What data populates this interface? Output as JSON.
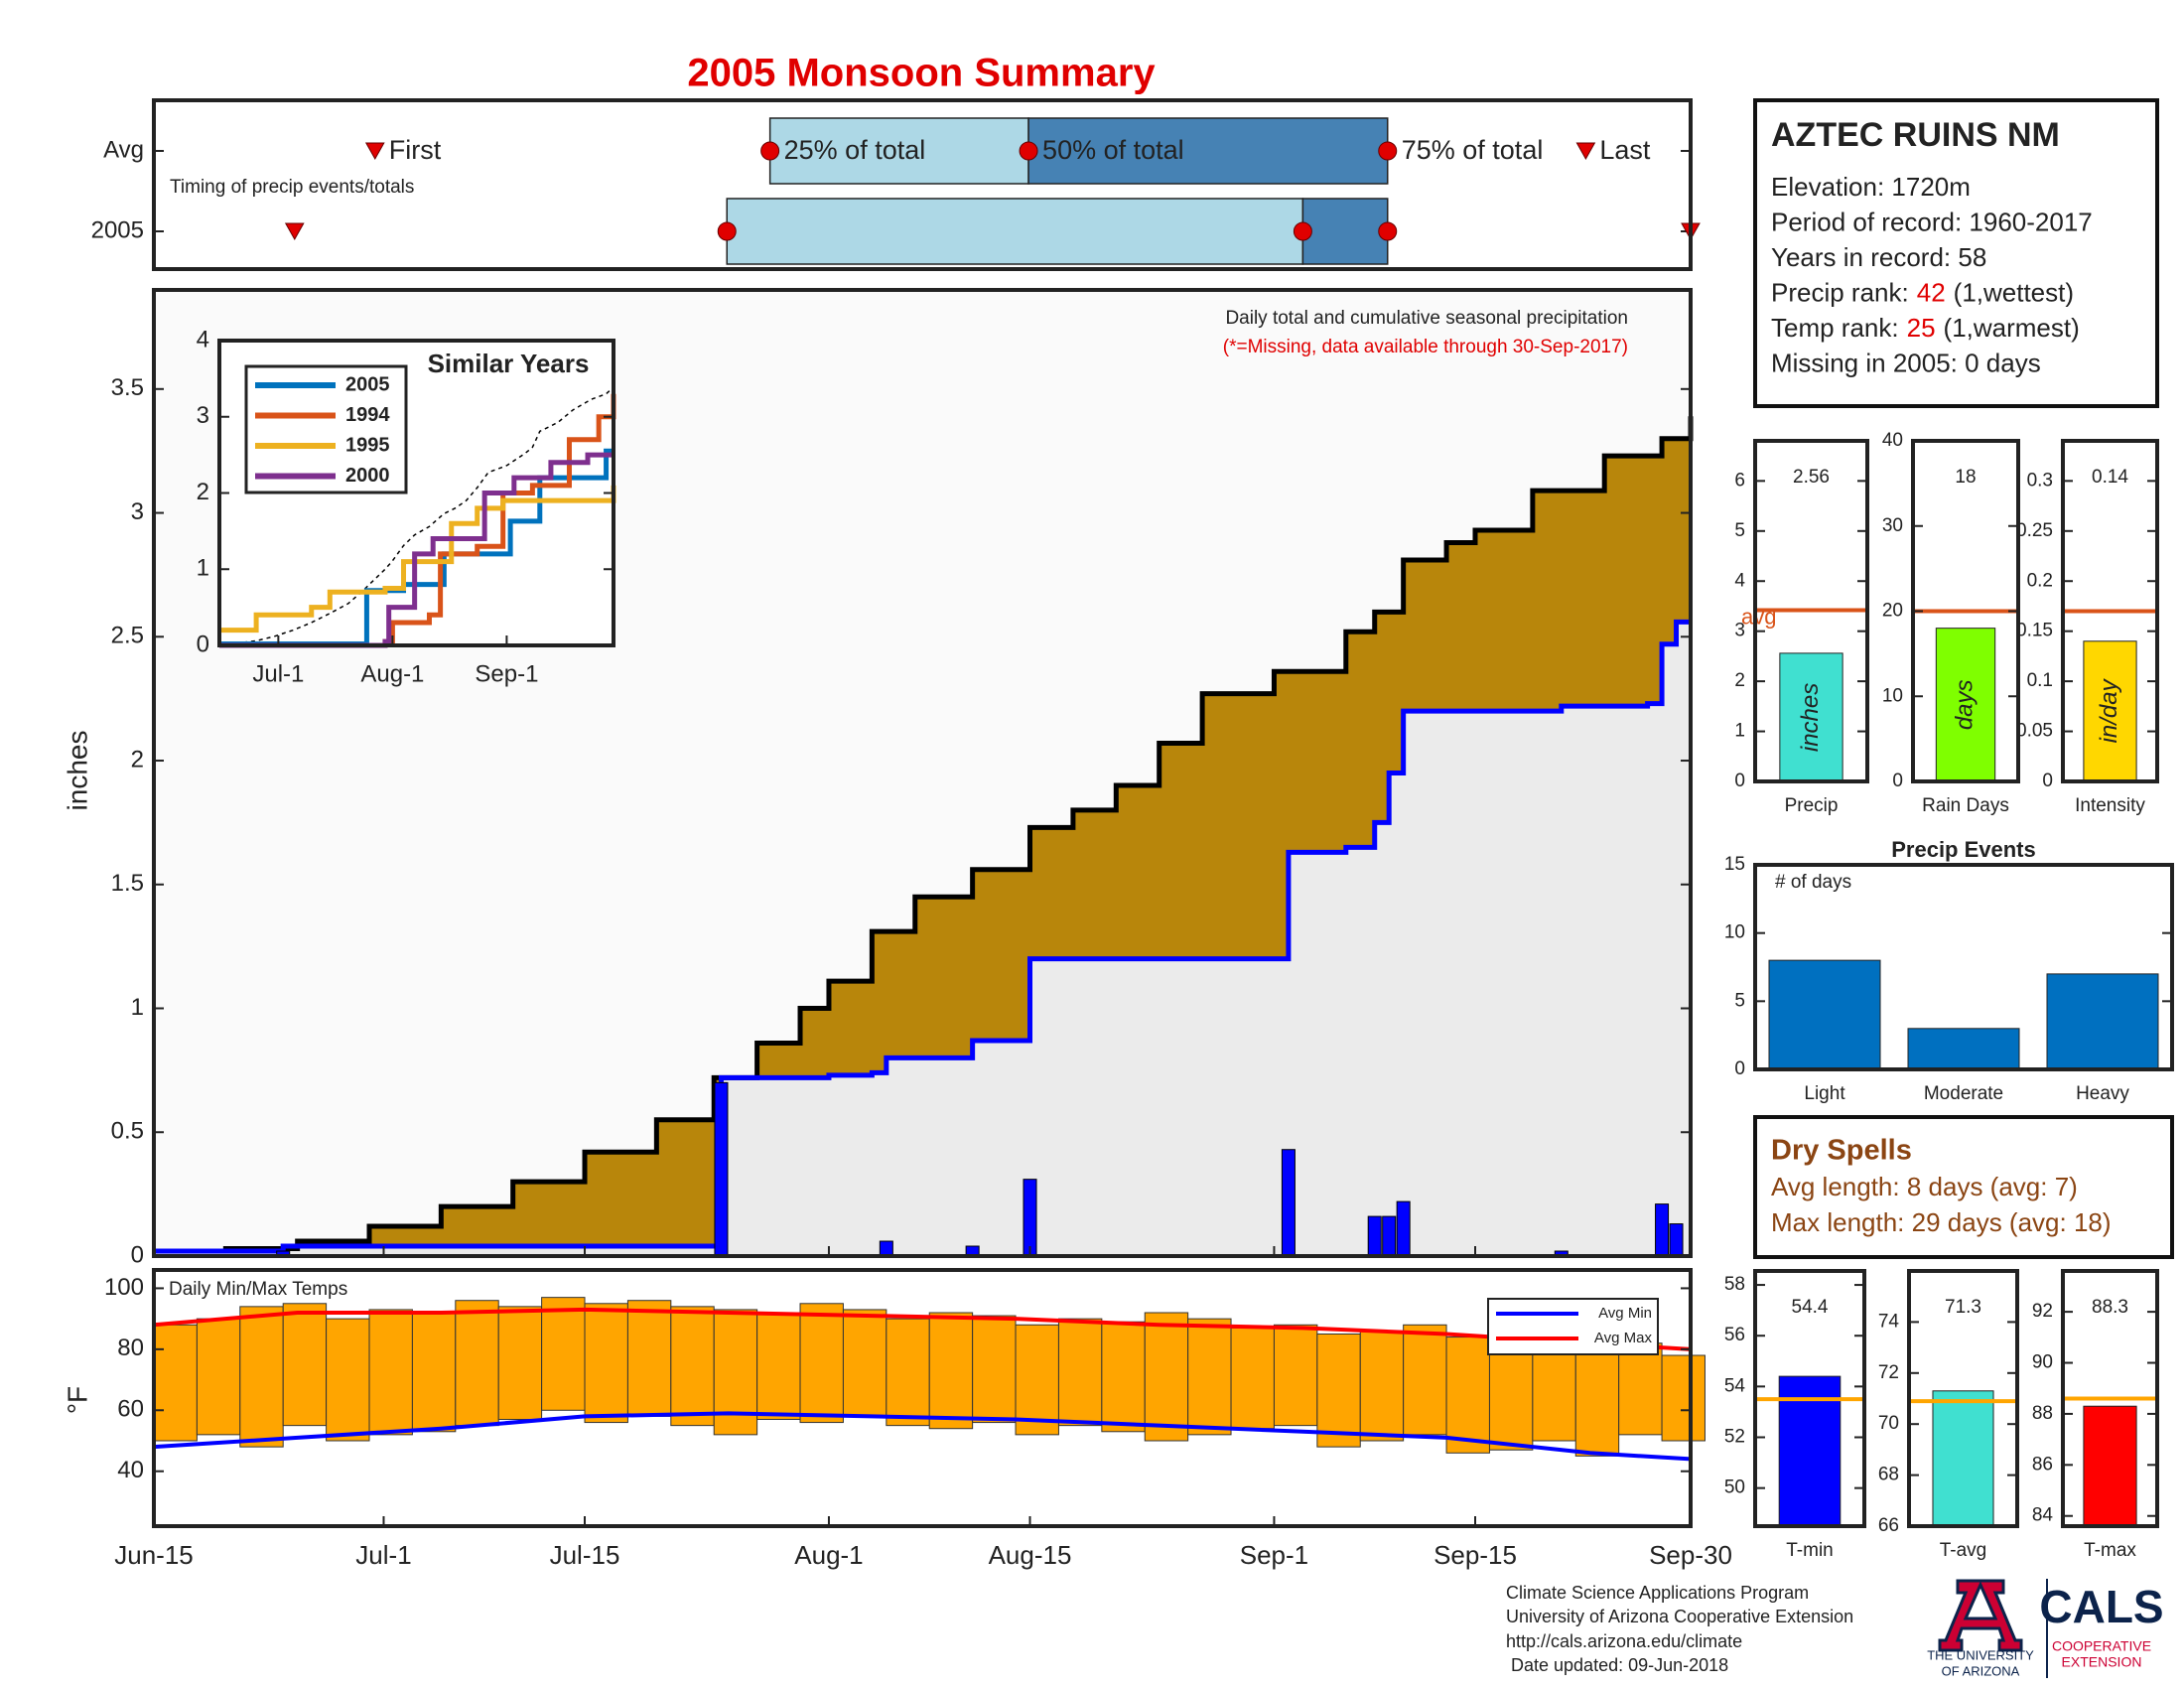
{
  "station": {
    "name": "AZTEC RUINS NM",
    "lines": [
      {
        "text": "Elevation: 1720m"
      },
      {
        "text": "Period of record: 1960-2017"
      },
      {
        "text": "Years in record: 58"
      },
      {
        "text": "Precip rank:",
        "value": 42,
        "note": "(1,wettest)"
      },
      {
        "text": "Temp rank:",
        "value": 25,
        "note": "(1,warmest)"
      },
      {
        "text": "Missing in 2005: 0 days"
      }
    ]
  },
  "dry_spells": {
    "title": "Dry Spells",
    "lines": [
      "Avg length: 8 days (avg: 7)",
      "Max length: 29 days (avg: 18)"
    ]
  },
  "footer": [
    "Climate Science Applications Program",
    "University of Arizona Cooperative Extension",
    "http://cals.arizona.edu/climate",
    "Date updated: 09-Jun-2018"
  ],
  "logos": [
    "THE UNIVERSITY",
    "OF ARIZONA",
    "CALS",
    "COOPERATIVE",
    "EXTENSION"
  ],
  "chart_data": [
    {
      "type": "timeline",
      "title": "2005 Monsoon Summary",
      "subtitle": "Timing of precip events/totals",
      "xlim": [
        0,
        107
      ],
      "rows": [
        "Avg",
        "2005"
      ],
      "marker_labels": [
        "First",
        "25% of total",
        "50% of total",
        "75% of total",
        "Last"
      ],
      "colors": [
        "#add8e6",
        "#4682b4"
      ],
      "series": [
        {
          "values": [
            15.4,
            42.9,
            60.9,
            85.9,
            99.7
          ]
        },
        {
          "values": [
            9.8,
            39.9,
            80,
            85.9,
            107
          ]
        }
      ]
    },
    {
      "type": "step-area",
      "ylabel": "inches",
      "annotations": [
        "Daily total and cumulative seasonal precipitation",
        "(*=Missing, data available through 30-Sep-2017)"
      ],
      "xlim": [
        0,
        107
      ],
      "ylim": [
        0,
        3.9
      ],
      "yticks": [
        0,
        0.5,
        1,
        1.5,
        2,
        2.5,
        3,
        3.5
      ],
      "series": [
        {
          "color": "#000000",
          "fill": "#b8860b",
          "x": [
            0,
            5,
            10,
            15,
            20,
            25,
            30,
            35,
            39,
            42,
            45,
            47,
            50,
            53,
            57,
            61,
            64,
            67,
            70,
            73,
            78,
            83,
            85,
            87,
            90,
            92,
            96,
            101,
            105,
            107
          ],
          "values": [
            0.02,
            0.03,
            0.06,
            0.12,
            0.2,
            0.3,
            0.42,
            0.55,
            0.72,
            0.86,
            1.0,
            1.11,
            1.31,
            1.45,
            1.56,
            1.73,
            1.8,
            1.9,
            2.07,
            2.27,
            2.36,
            2.52,
            2.6,
            2.81,
            2.88,
            2.93,
            3.09,
            3.23,
            3.3,
            3.39
          ]
        },
        {
          "color": "#0000ff",
          "fill": "#ebebeb",
          "x": [
            0,
            9,
            39.5,
            47,
            50,
            51,
            57,
            61,
            79,
            83,
            85,
            86,
            87,
            98,
            104,
            105,
            106
          ],
          "values": [
            0.02,
            0.04,
            0.72,
            0.73,
            0.74,
            0.8,
            0.87,
            1.2,
            1.63,
            1.65,
            1.75,
            1.95,
            2.2,
            2.22,
            2.23,
            2.47,
            2.56
          ]
        }
      ],
      "bars": {
        "color": "#0000ff",
        "x": [
          9,
          39.5,
          51,
          57,
          61,
          79,
          85,
          86,
          87,
          98,
          105,
          106
        ],
        "values": [
          0.02,
          0.7,
          0.06,
          0.04,
          0.31,
          0.43,
          0.16,
          0.16,
          0.22,
          0.02,
          0.21,
          0.13
        ]
      }
    },
    {
      "type": "step-line",
      "title": "Similar Years",
      "xlim": [
        0,
        107
      ],
      "ylim": [
        0,
        4
      ],
      "yticks": [
        0,
        1,
        2,
        3,
        4
      ],
      "xticks": [
        {
          "value": 16,
          "label": "Jul-1"
        },
        {
          "value": 47,
          "label": "Aug-1"
        },
        {
          "value": 78,
          "label": "Sep-1"
        }
      ],
      "series": [
        {
          "name": "2005",
          "color": "#0072bd",
          "x": [
            0,
            39,
            40,
            50,
            61,
            79,
            87,
            105
          ],
          "values": [
            0.02,
            0.02,
            0.72,
            0.8,
            1.2,
            1.63,
            2.2,
            2.55
          ]
        },
        {
          "name": "1994",
          "color": "#d95319",
          "x": [
            0,
            45,
            47,
            57,
            60,
            70,
            77,
            85,
            95,
            103,
            107
          ],
          "values": [
            0,
            0.05,
            0.3,
            0.4,
            1.2,
            1.3,
            2.0,
            2.1,
            2.7,
            3.0,
            3.3
          ]
        },
        {
          "name": "1995",
          "color": "#edb120",
          "x": [
            0,
            10,
            25,
            30,
            45,
            50,
            63,
            70,
            77,
            90,
            107
          ],
          "values": [
            0.2,
            0.4,
            0.5,
            0.7,
            0.75,
            1.1,
            1.6,
            1.8,
            1.9,
            1.9,
            2.1
          ]
        },
        {
          "name": "2000",
          "color": "#7e2f8e",
          "x": [
            0,
            45,
            46,
            53,
            58,
            65,
            72,
            80,
            90,
            100
          ],
          "values": [
            0,
            0.05,
            0.5,
            1.2,
            1.4,
            1.4,
            2.0,
            2.2,
            2.4,
            2.5
          ]
        }
      ]
    },
    {
      "type": "bar",
      "categories": [
        "Precip"
      ],
      "values": [
        2.56
      ],
      "show_values": true,
      "unit_label": "inches",
      "color": "#40e0d0",
      "ylim": [
        0,
        6.8
      ],
      "yticks": [
        0,
        1,
        2,
        3,
        4,
        5,
        6
      ],
      "reference": 3.42,
      "reference_color": "#d95319",
      "reference_label": "avg"
    },
    {
      "type": "bar",
      "categories": [
        "Rain Days"
      ],
      "values": [
        18
      ],
      "show_values": true,
      "unit_label": "days",
      "color": "#7fff00",
      "ylim": [
        0,
        40
      ],
      "yticks": [
        0,
        10,
        20,
        30,
        40
      ],
      "reference": 20,
      "reference_color": "#d95319"
    },
    {
      "type": "bar",
      "categories": [
        "Intensity"
      ],
      "values": [
        0.14
      ],
      "show_values": true,
      "unit_label": "in/day",
      "color": "#ffd700",
      "ylim": [
        0,
        0.34
      ],
      "yticks": [
        0,
        0.05,
        0.1,
        0.15,
        0.2,
        0.25,
        0.3
      ],
      "reference": 0.17,
      "reference_color": "#d95319"
    },
    {
      "type": "bar",
      "title": "Precip Events",
      "annotation": "# of days",
      "categories": [
        "Light",
        "Moderate",
        "Heavy"
      ],
      "values": [
        8,
        3,
        7
      ],
      "color": "#0070c0",
      "ylim": [
        0,
        15
      ],
      "yticks": [
        0,
        5,
        10,
        15
      ]
    },
    {
      "type": "range-bar",
      "annotation": "Daily Min/Max Temps",
      "ylabel": "°F",
      "xlim": [
        0,
        107
      ],
      "ylim": [
        22,
        106
      ],
      "yticks": [
        40,
        60,
        80,
        100
      ],
      "xticks": [
        {
          "value": 0,
          "label": "Jun-15"
        },
        {
          "value": 16,
          "label": "Jul-1"
        },
        {
          "value": 30,
          "label": "Jul-15"
        },
        {
          "value": 47,
          "label": "Aug-1"
        },
        {
          "value": 61,
          "label": "Aug-15"
        },
        {
          "value": 78,
          "label": "Sep-1"
        },
        {
          "value": 92,
          "label": "Sep-15"
        },
        {
          "value": 107,
          "label": "Sep-30"
        }
      ],
      "color": "#ffa500",
      "x": [
        0,
        3,
        6,
        9,
        12,
        15,
        18,
        21,
        24,
        27,
        30,
        33,
        36,
        39,
        42,
        45,
        48,
        51,
        54,
        57,
        60,
        63,
        66,
        69,
        72,
        75,
        78,
        81,
        84,
        87,
        90,
        93,
        96,
        99,
        102,
        105
      ],
      "max": [
        88,
        90,
        94,
        95,
        90,
        93,
        92,
        96,
        94,
        97,
        95,
        96,
        94,
        93,
        92,
        95,
        93,
        90,
        92,
        91,
        88,
        90,
        89,
        92,
        90,
        87,
        88,
        85,
        86,
        88,
        84,
        83,
        85,
        80,
        82,
        78
      ],
      "min": [
        50,
        52,
        48,
        55,
        50,
        52,
        53,
        55,
        57,
        60,
        56,
        58,
        55,
        52,
        57,
        56,
        58,
        55,
        54,
        56,
        52,
        55,
        53,
        50,
        52,
        54,
        55,
        48,
        50,
        52,
        46,
        47,
        50,
        45,
        52,
        50
      ],
      "series": [
        {
          "name": "Avg Min",
          "color": "#0000ff",
          "x": [
            0,
            10,
            20,
            30,
            40,
            50,
            60,
            70,
            80,
            90,
            100,
            107
          ],
          "values": [
            48,
            51,
            54,
            58,
            59,
            58,
            57,
            55,
            53,
            51,
            46,
            44
          ]
        },
        {
          "name": "Avg Max",
          "color": "#ff0000",
          "x": [
            0,
            10,
            20,
            30,
            40,
            50,
            60,
            70,
            80,
            90,
            100,
            107
          ],
          "values": [
            88,
            92,
            92,
            93,
            92,
            91,
            90,
            88,
            87,
            85,
            82,
            80
          ]
        }
      ]
    },
    {
      "type": "bar",
      "categories": [
        "T-min"
      ],
      "values": [
        54.4
      ],
      "show_values": true,
      "color": "#0000ff",
      "ylim": [
        48.5,
        58.55
      ],
      "yticks": [
        50,
        52,
        54,
        56,
        58
      ],
      "reference": 53.5,
      "reference_color": "#ffa500"
    },
    {
      "type": "bar",
      "categories": [
        "T-avg"
      ],
      "values": [
        71.3
      ],
      "show_values": true,
      "color": "#40e0d0",
      "ylim": [
        66,
        76
      ],
      "yticks": [
        66,
        68,
        70,
        72,
        74
      ],
      "reference": 70.9,
      "reference_color": "#ffa500"
    },
    {
      "type": "bar",
      "categories": [
        "T-max"
      ],
      "values": [
        88.3
      ],
      "show_values": true,
      "color": "#ff0000",
      "ylim": [
        83.6,
        93.6
      ],
      "yticks": [
        84,
        86,
        88,
        90,
        92
      ],
      "reference": 88.6,
      "reference_color": "#ffa500"
    }
  ]
}
